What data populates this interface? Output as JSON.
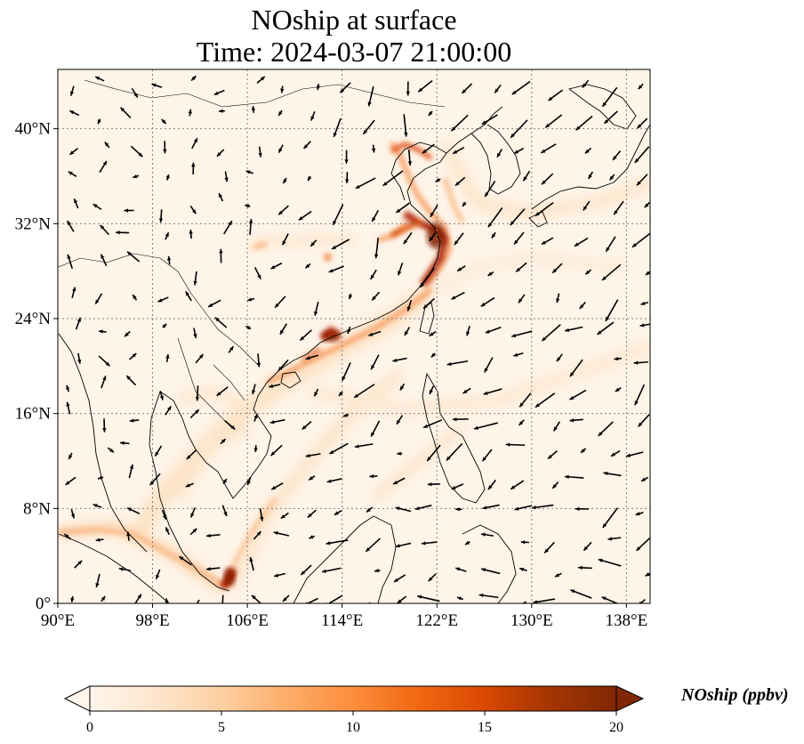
{
  "title_line1": "NOship at surface",
  "title_line2": "Time: 2024-03-07 21:00:00",
  "map": {
    "lon_range": [
      90,
      140
    ],
    "lat_range": [
      0,
      45
    ],
    "x_ticks": [
      "90°E",
      "98°E",
      "106°E",
      "114°E",
      "122°E",
      "130°E",
      "138°E"
    ],
    "x_tick_values": [
      90,
      98,
      106,
      114,
      122,
      130,
      138
    ],
    "y_ticks": [
      "0°",
      "8°N",
      "16°N",
      "24°N",
      "32°N",
      "40°N"
    ],
    "y_tick_values": [
      0,
      8,
      16,
      24,
      32,
      40
    ],
    "gridlines": true,
    "overlay": "wind-vectors"
  },
  "colorbar": {
    "label": "NOship (ppbv)",
    "ticks": [
      "0",
      "5",
      "10",
      "15",
      "20"
    ],
    "tick_values": [
      0,
      5,
      10,
      15,
      20
    ],
    "range": [
      0,
      20
    ],
    "extend": "both",
    "colormap": [
      "#fff5eb",
      "#fee6ce",
      "#fdd0a2",
      "#fdae6b",
      "#fd8d3c",
      "#f16913",
      "#d94801",
      "#a63603",
      "#7f2704"
    ]
  }
}
